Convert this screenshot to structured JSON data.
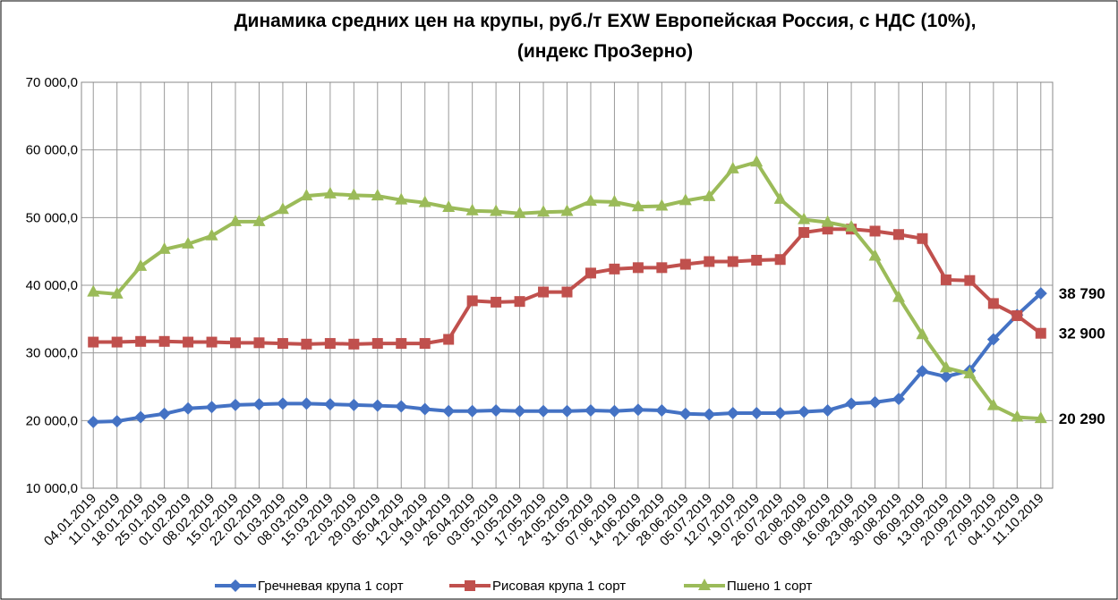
{
  "chart_data": {
    "type": "line",
    "title": "Динамика средних цен на крупы, руб./т EXW Европейская Россия, с НДС (10%),",
    "subtitle": "(индекс ПроЗерно)",
    "categories": [
      "04.01.2019",
      "11.01.2019",
      "18.01.2019",
      "25.01.2019",
      "01.02.2019",
      "08.02.2019",
      "15.02.2019",
      "22.02.2019",
      "01.03.2019",
      "08.03.2019",
      "15.03.2019",
      "22.03.2019",
      "29.03.2019",
      "05.04.2019",
      "12.04.2019",
      "19.04.2019",
      "26.04.2019",
      "03.05.2019",
      "10.05.2019",
      "17.05.2019",
      "24.05.2019",
      "31.05.2019",
      "07.06.2019",
      "14.06.2019",
      "21.06.2019",
      "28.06.2019",
      "05.07.2019",
      "12.07.2019",
      "19.07.2019",
      "26.07.2019",
      "02.08.2019",
      "09.08.2019",
      "16.08.2019",
      "23.08.2019",
      "30.08.2019",
      "06.09.2019",
      "13.09.2019",
      "20.09.2019",
      "27.09.2019",
      "04.10.2019",
      "11.10.2019"
    ],
    "series": [
      {
        "name": "Гречневая крупа 1 сорт",
        "color": "#4472c4",
        "marker": "diamond",
        "end_label": "38 790",
        "values": [
          19800,
          19900,
          20500,
          21000,
          21800,
          22000,
          22300,
          22400,
          22500,
          22500,
          22400,
          22300,
          22200,
          22100,
          21700,
          21400,
          21400,
          21500,
          21400,
          21400,
          21400,
          21500,
          21400,
          21600,
          21500,
          21000,
          20900,
          21100,
          21100,
          21100,
          21300,
          21500,
          22500,
          22700,
          23200,
          27300,
          26500,
          27400,
          32000,
          35600,
          38790
        ]
      },
      {
        "name": "Рисовая крупа 1 сорт",
        "color": "#c0504d",
        "marker": "square",
        "end_label": "32 900",
        "values": [
          31600,
          31600,
          31700,
          31700,
          31600,
          31600,
          31500,
          31500,
          31400,
          31300,
          31400,
          31300,
          31400,
          31400,
          31400,
          32000,
          37700,
          37500,
          37600,
          39000,
          39000,
          41800,
          42400,
          42600,
          42600,
          43100,
          43500,
          43500,
          43700,
          43800,
          47800,
          48300,
          48300,
          48000,
          47500,
          46900,
          40800,
          40700,
          37300,
          35500,
          32900
        ]
      },
      {
        "name": "Пшено 1 сорт",
        "color": "#9bbb59",
        "marker": "triangle",
        "end_label": "20 290",
        "values": [
          39000,
          38700,
          42800,
          45300,
          46100,
          47300,
          49400,
          49400,
          51200,
          53200,
          53500,
          53300,
          53200,
          52600,
          52200,
          51500,
          51000,
          50900,
          50600,
          50800,
          50900,
          52400,
          52300,
          51600,
          51700,
          52500,
          53100,
          57200,
          58200,
          52700,
          49700,
          49300,
          48600,
          44300,
          38200,
          32700,
          27800,
          26900,
          22200,
          20500,
          20290
        ]
      }
    ],
    "ylim": [
      10000,
      70000
    ],
    "yticks": [
      {
        "value": 10000,
        "label": "10 000,0"
      },
      {
        "value": 20000,
        "label": "20 000,0"
      },
      {
        "value": 30000,
        "label": "30 000,0"
      },
      {
        "value": 40000,
        "label": "40 000,0"
      },
      {
        "value": 50000,
        "label": "50 000,0"
      },
      {
        "value": 60000,
        "label": "60 000,0"
      },
      {
        "value": 70000,
        "label": "70 000,0"
      }
    ],
    "grid": true,
    "legend": "bottom"
  }
}
